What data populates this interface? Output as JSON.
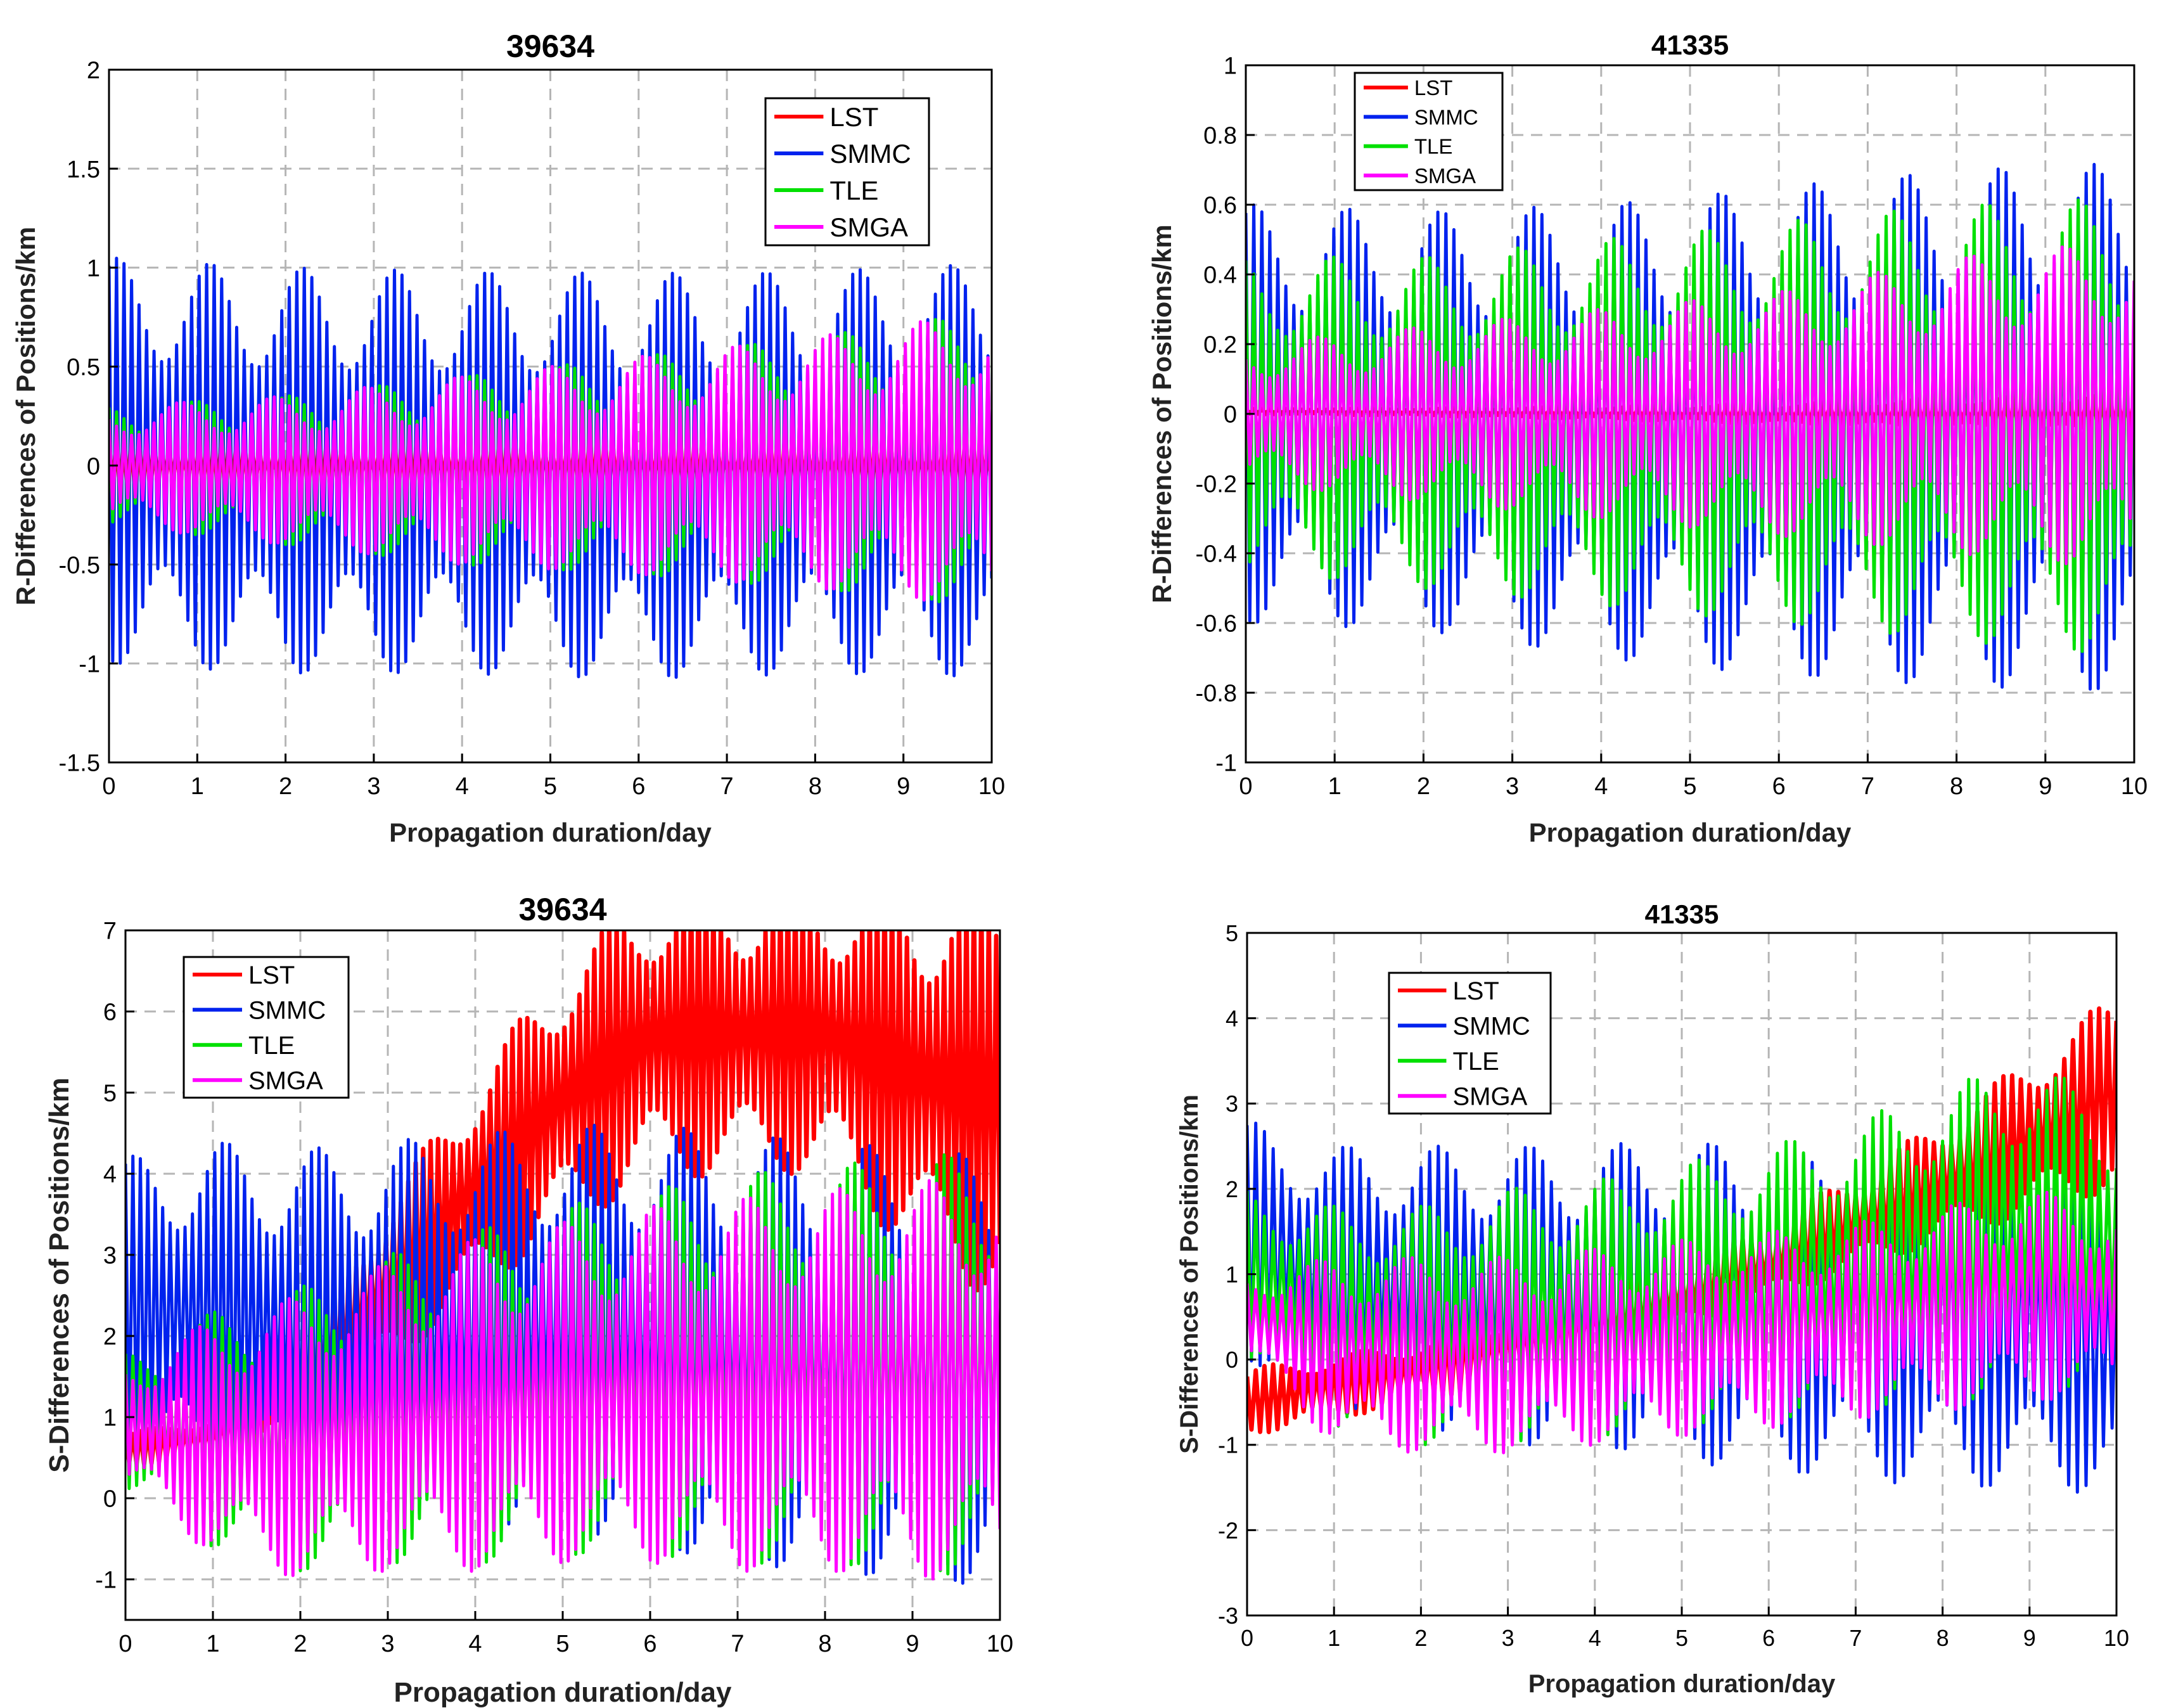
{
  "colors": {
    "LST": "#ff0000",
    "SMMC": "#0022ee",
    "TLE": "#00e000",
    "SMGA": "#ff00ff",
    "grid": "#b5b5b5",
    "axis": "#000000"
  },
  "chart_data": [
    {
      "id": "r39634",
      "type": "line",
      "title": "39634",
      "xlabel": "Propagation duration/day",
      "ylabel": "R-Differences of Positions/km",
      "xlim": [
        0,
        10
      ],
      "ylim": [
        -1.5,
        2
      ],
      "xticks": [
        "0",
        "1",
        "2",
        "3",
        "4",
        "5",
        "6",
        "7",
        "8",
        "9",
        "10"
      ],
      "yticks": [
        "-1.5",
        "-1",
        "-0.5",
        "0",
        "0.5",
        "1",
        "1.5",
        "2"
      ],
      "grid": true,
      "legend_position": "top-right",
      "series": [
        {
          "name": "LST",
          "x": [
            0,
            2,
            4,
            6,
            8,
            10
          ],
          "upper": [
            0.17,
            0.17,
            0.17,
            0.17,
            0.17,
            0.17
          ],
          "lower": [
            -0.17,
            -0.17,
            -0.17,
            -0.17,
            -0.17,
            -0.17
          ]
        },
        {
          "name": "SMMC",
          "x": [
            0,
            2,
            4,
            6,
            8,
            10
          ],
          "upper": [
            1.05,
            1.0,
            0.98,
            0.97,
            0.98,
            1.02
          ],
          "lower": [
            -1.0,
            -1.05,
            -1.05,
            -1.08,
            -1.05,
            -1.07
          ]
        },
        {
          "name": "TLE",
          "x": [
            0,
            2,
            4,
            6,
            8,
            10
          ],
          "upper": [
            0.3,
            0.35,
            0.45,
            0.55,
            0.65,
            0.78
          ],
          "lower": [
            -0.3,
            -0.4,
            -0.5,
            -0.55,
            -0.62,
            -0.72
          ]
        },
        {
          "name": "SMGA",
          "x": [
            0,
            2,
            4,
            6,
            8,
            10
          ],
          "upper": [
            0.3,
            0.35,
            0.45,
            0.55,
            0.65,
            0.78
          ],
          "lower": [
            -0.3,
            -0.4,
            -0.5,
            -0.55,
            -0.62,
            -0.72
          ]
        }
      ]
    },
    {
      "id": "r41335",
      "type": "line",
      "title": "41335",
      "xlabel": "Propagation duration/day",
      "ylabel": "R-Differences of Positions/km",
      "xlim": [
        0,
        10
      ],
      "ylim": [
        -1,
        1
      ],
      "xticks": [
        "0",
        "1",
        "2",
        "3",
        "4",
        "5",
        "6",
        "7",
        "8",
        "9",
        "10"
      ],
      "yticks": [
        "-1",
        "-0.8",
        "-0.6",
        "-0.4",
        "-0.2",
        "0",
        "0.2",
        "0.4",
        "0.6",
        "0.8",
        "1"
      ],
      "grid": true,
      "legend_position": "top-left",
      "series": [
        {
          "name": "LST",
          "x": [
            0,
            2,
            4,
            6,
            8,
            10
          ],
          "upper": [
            0.015,
            0.015,
            0.02,
            0.03,
            0.045,
            0.06
          ],
          "lower": [
            0.0,
            -0.005,
            -0.015,
            -0.03,
            -0.045,
            -0.06
          ]
        },
        {
          "name": "SMMC",
          "x": [
            0,
            2,
            4,
            6,
            8,
            10
          ],
          "upper": [
            0.6,
            0.58,
            0.6,
            0.65,
            0.7,
            0.72
          ],
          "lower": [
            -0.6,
            -0.62,
            -0.7,
            -0.75,
            -0.78,
            -0.8
          ]
        },
        {
          "name": "TLE",
          "x": [
            0,
            2,
            4,
            6,
            8,
            10
          ],
          "upper": [
            0.45,
            0.45,
            0.5,
            0.55,
            0.6,
            0.62
          ],
          "lower": [
            -0.45,
            -0.5,
            -0.55,
            -0.6,
            -0.65,
            -0.7
          ]
        },
        {
          "name": "SMGA",
          "x": [
            0,
            2,
            4,
            6,
            8,
            10
          ],
          "upper": [
            0.2,
            0.25,
            0.3,
            0.35,
            0.45,
            0.5
          ],
          "lower": [
            -0.2,
            -0.25,
            -0.3,
            -0.35,
            -0.4,
            -0.45
          ]
        }
      ]
    },
    {
      "id": "s39634",
      "type": "line",
      "title": "39634",
      "xlabel": "Propagation duration/day",
      "ylabel": "S-Differences of Positions/km",
      "xlim": [
        0,
        10
      ],
      "ylim": [
        -1.5,
        7
      ],
      "xticks": [
        "0",
        "1",
        "2",
        "3",
        "4",
        "5",
        "6",
        "7",
        "8",
        "9",
        "10"
      ],
      "yticks": [
        "-1",
        "0",
        "1",
        "2",
        "3",
        "4",
        "5",
        "6",
        "7"
      ],
      "grid": true,
      "legend_position": "top-left",
      "series": [
        {
          "name": "LST",
          "x": [
            0,
            1,
            2,
            3,
            4,
            5,
            6,
            7,
            8,
            9,
            10
          ],
          "upper": [
            0.8,
            1.0,
            2.0,
            3.7,
            5.2,
            6.6,
            7.5,
            7.5,
            7.5,
            7.5,
            7.5
          ],
          "lower": [
            0.4,
            0.5,
            0.9,
            1.6,
            2.5,
            3.3,
            3.9,
            4.0,
            4.0,
            3.0,
            2.4
          ]
        },
        {
          "name": "SMMC",
          "x": [
            0,
            1,
            2,
            3,
            4,
            5,
            6,
            7,
            8,
            9,
            10
          ],
          "upper": [
            4.2,
            4.4,
            4.3,
            4.4,
            4.5,
            4.6,
            4.6,
            4.5,
            4.4,
            4.3,
            4.2
          ],
          "lower": [
            0.3,
            0.2,
            -0.2,
            -0.3,
            -0.4,
            -0.4,
            -0.6,
            -0.8,
            -0.9,
            -1.0,
            -1.1
          ]
        },
        {
          "name": "TLE",
          "x": [
            0,
            1,
            2,
            3,
            4,
            5,
            6,
            7,
            8,
            9,
            10
          ],
          "upper": [
            1.8,
            2.3,
            2.6,
            3.0,
            3.3,
            3.6,
            3.8,
            4.0,
            4.1,
            4.2,
            4.3
          ],
          "lower": [
            0.1,
            -0.6,
            -0.9,
            -0.8,
            -0.8,
            -0.7,
            -0.7,
            -0.8,
            -0.8,
            -0.9,
            -1.0
          ]
        },
        {
          "name": "SMGA",
          "x": [
            0,
            1,
            2,
            3,
            4,
            5,
            6,
            7,
            8,
            9,
            10
          ],
          "upper": [
            1.7,
            2.2,
            2.5,
            2.9,
            3.2,
            3.4,
            3.6,
            3.7,
            3.8,
            3.9,
            4.0
          ],
          "lower": [
            0.1,
            -0.7,
            -1.0,
            -0.9,
            -0.9,
            -0.8,
            -0.8,
            -0.9,
            -0.9,
            -1.0,
            -1.0
          ]
        }
      ]
    },
    {
      "id": "s41335",
      "type": "line",
      "title": "41335",
      "xlabel": "Propagation duration/day",
      "ylabel": "S-Differences of Positions/km",
      "xlim": [
        0,
        10
      ],
      "ylim": [
        -3,
        5
      ],
      "xticks": [
        "0",
        "1",
        "2",
        "3",
        "4",
        "5",
        "6",
        "7",
        "8",
        "9",
        "10"
      ],
      "yticks": [
        "-3",
        "-2",
        "-1",
        "0",
        "1",
        "2",
        "3",
        "4",
        "5"
      ],
      "grid": true,
      "legend_position": "top-left",
      "series": [
        {
          "name": "LST",
          "x": [
            0,
            2,
            4,
            6,
            8,
            10
          ],
          "upper": [
            -0.1,
            0.2,
            0.8,
            1.6,
            2.8,
            4.3
          ],
          "lower": [
            -0.9,
            -0.5,
            0.0,
            0.7,
            1.4,
            2.0
          ]
        },
        {
          "name": "SMMC",
          "x": [
            0,
            1,
            2,
            3,
            4,
            5,
            6,
            7,
            8,
            9,
            10
          ],
          "upper": [
            2.8,
            2.5,
            2.5,
            2.5,
            2.5,
            2.6,
            2.4,
            2.4,
            2.6,
            2.4,
            2.0
          ],
          "lower": [
            0.0,
            -0.6,
            -0.8,
            -1.0,
            -1.0,
            -1.2,
            -1.3,
            -1.4,
            -1.5,
            -1.5,
            -1.6
          ]
        },
        {
          "name": "TLE",
          "x": [
            0,
            1,
            2,
            3,
            4,
            5,
            6,
            7,
            8,
            9,
            10
          ],
          "upper": [
            2.0,
            1.8,
            1.8,
            2.0,
            2.1,
            2.3,
            2.5,
            2.8,
            3.2,
            3.5,
            3.0
          ],
          "lower": [
            0.0,
            -0.8,
            -1.0,
            -1.0,
            -0.9,
            -0.8,
            -0.7,
            -0.6,
            -0.5,
            -0.4,
            -0.3
          ]
        },
        {
          "name": "SMGA",
          "x": [
            0,
            1,
            2,
            3,
            4,
            5,
            6,
            7,
            8,
            9,
            10
          ],
          "upper": [
            1.0,
            1.2,
            1.2,
            1.2,
            1.3,
            1.4,
            1.5,
            1.6,
            1.8,
            2.0,
            1.8
          ],
          "lower": [
            0.0,
            -1.0,
            -1.1,
            -1.1,
            -1.0,
            -0.9,
            -0.8,
            -0.7,
            -0.6,
            -0.5,
            -0.4
          ]
        }
      ]
    }
  ]
}
